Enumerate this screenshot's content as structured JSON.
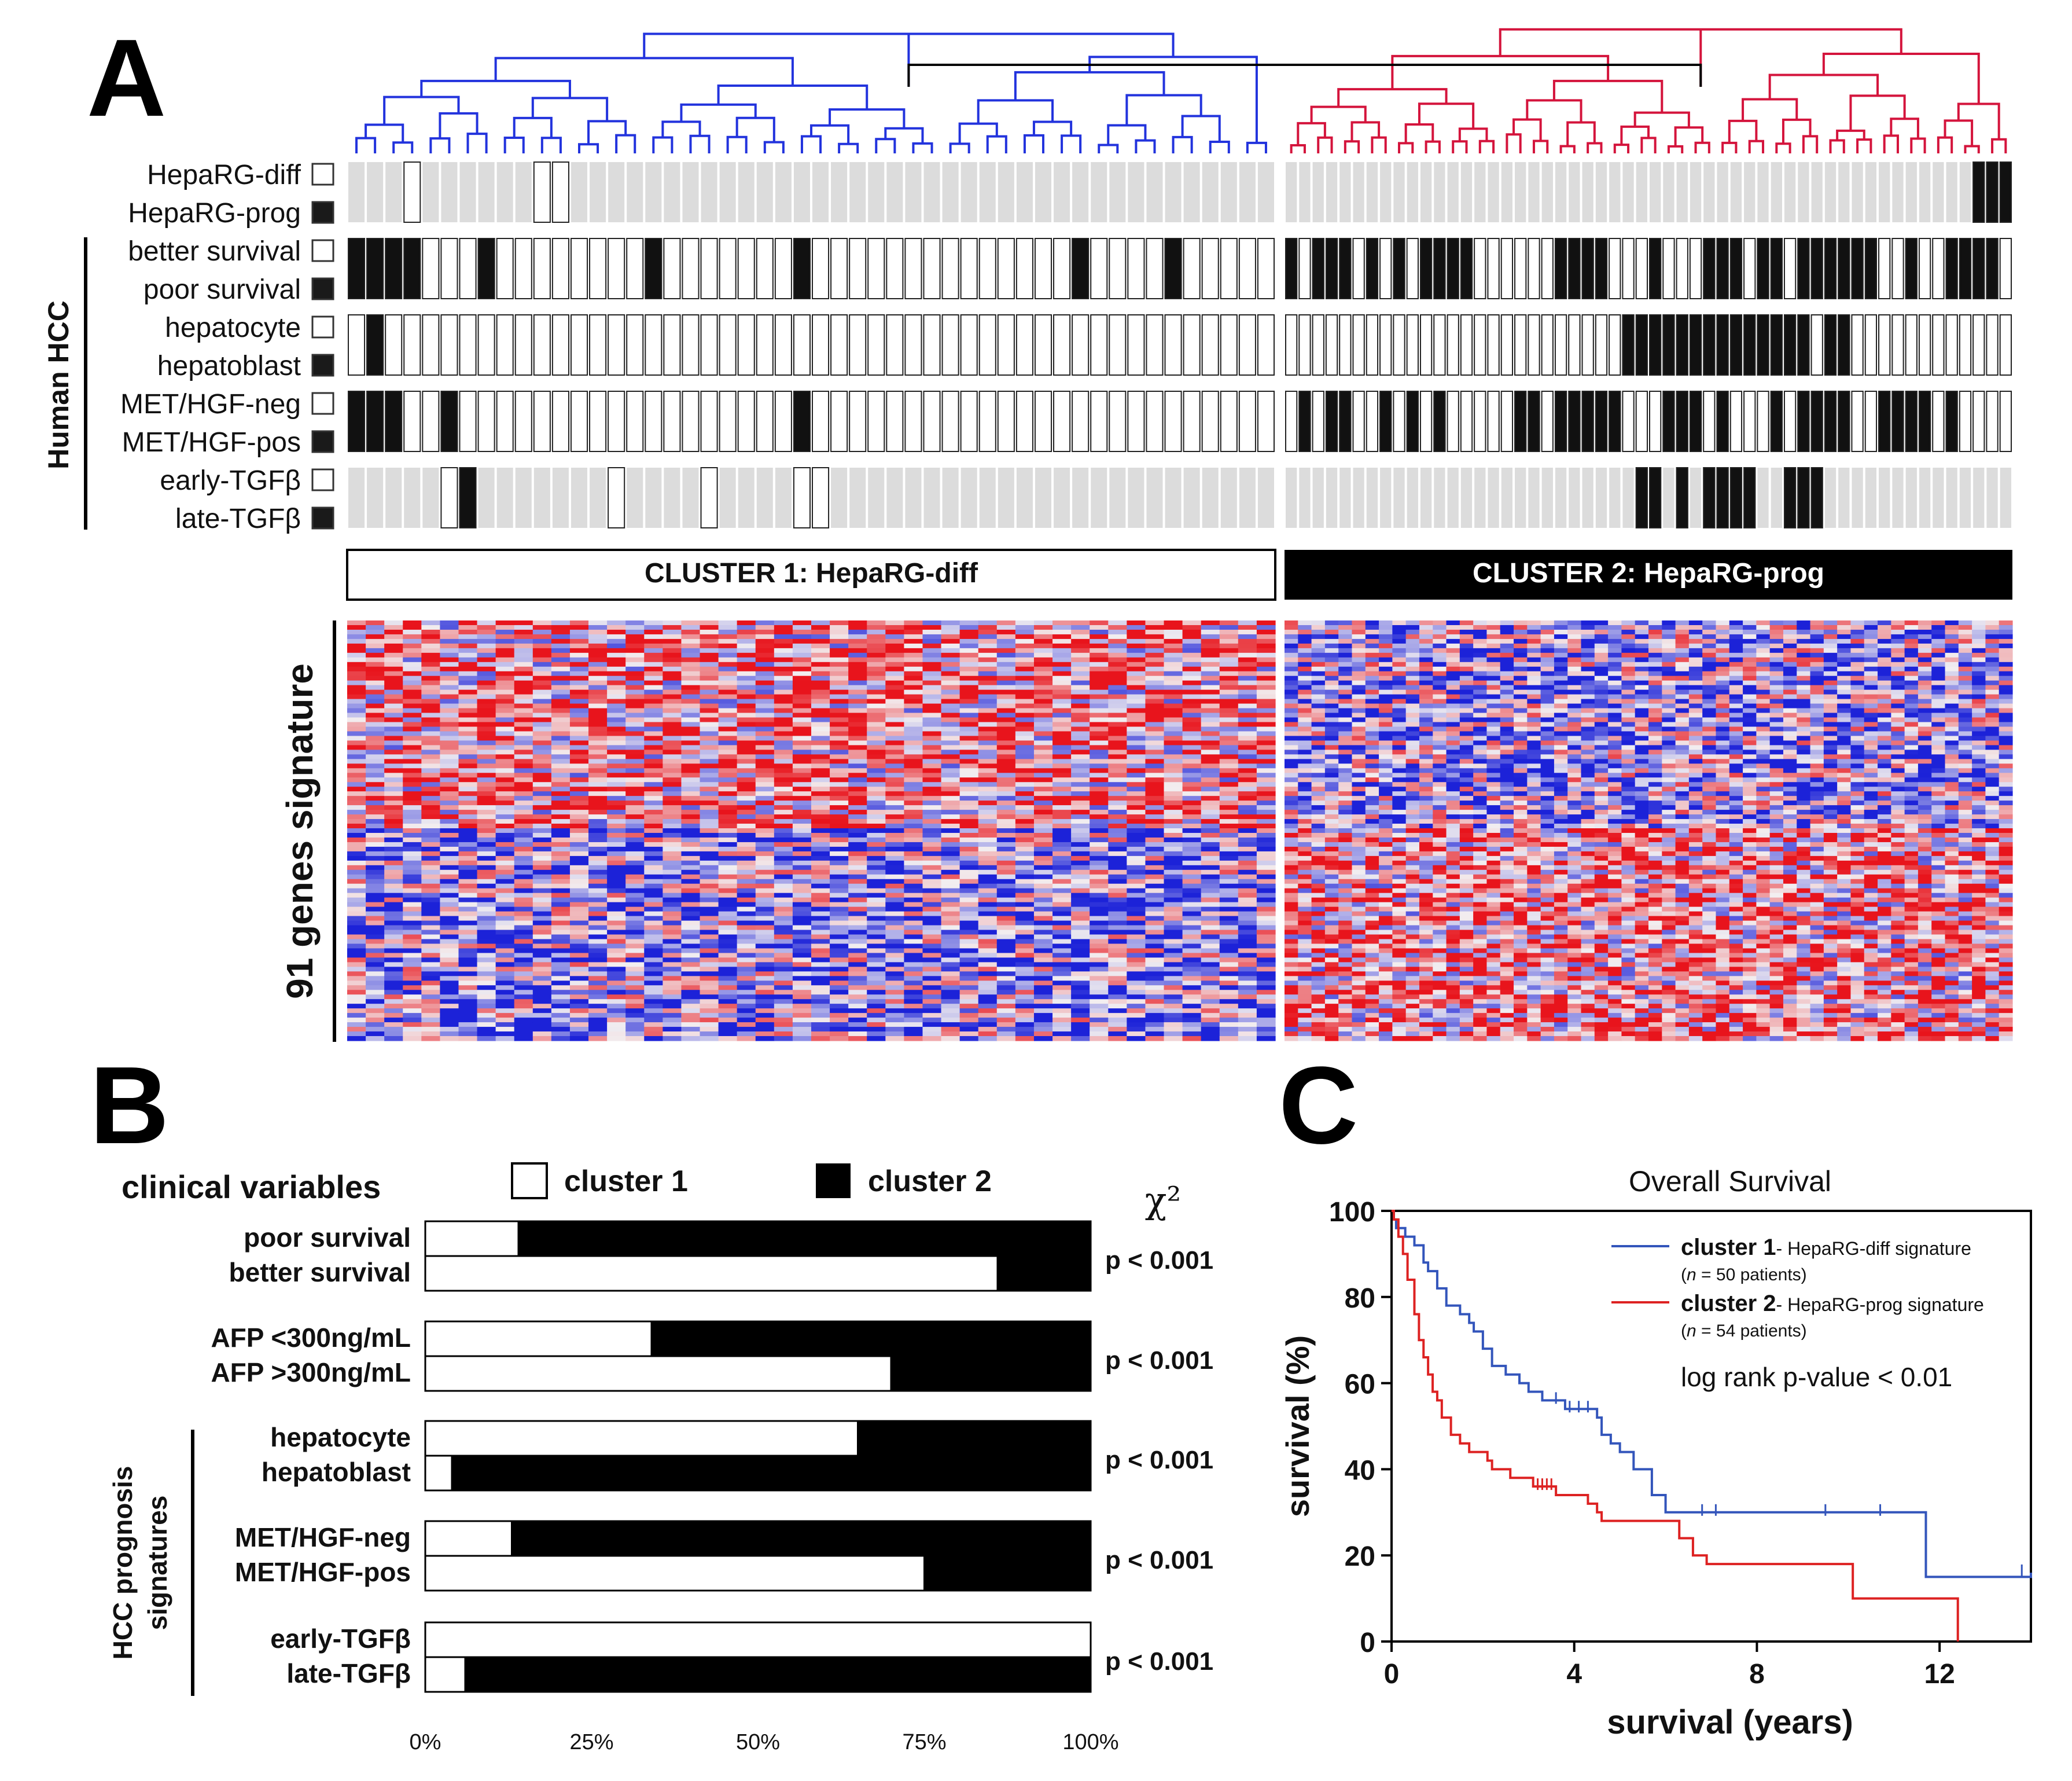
{
  "panels": {
    "a": "A",
    "b": "B",
    "c": "C"
  },
  "panel_a": {
    "annotation_rows": [
      {
        "name": "hepaRG",
        "labels": [
          "HepaRG-diff",
          "HepaRG-prog"
        ]
      },
      {
        "name": "survival",
        "labels": [
          "better survival",
          "poor survival"
        ]
      },
      {
        "name": "hepatocyte",
        "labels": [
          "hepatocyte",
          "hepatoblast"
        ]
      },
      {
        "name": "met",
        "labels": [
          "MET/HGF-neg",
          "MET/HGF-pos"
        ]
      },
      {
        "name": "tgf",
        "labels": [
          "early-TGFβ",
          "late-TGFβ"
        ]
      }
    ],
    "group_label": "Human HCC",
    "cluster1_label": "CLUSTER 1: HepaRG-diff",
    "cluster2_label": "CLUSTER 2: HepaRG-prog",
    "heatmap_label": "91 genes signature",
    "colors": {
      "cluster1_tree": "#2233dd",
      "cluster2_tree": "#d4143c",
      "heat_high": "#e8141c",
      "heat_low": "#1c22d8",
      "heat_mid": "#f2eef0"
    }
  },
  "chart_data": [
    {
      "type": "bar",
      "subtype": "stacked-percent-horizontal",
      "title": "",
      "header": "clinical variables",
      "legend": [
        {
          "name": "cluster 1",
          "color": "#ffffff"
        },
        {
          "name": "cluster 2",
          "color": "#000000"
        }
      ],
      "legend_placement": "top",
      "chi_label": "χ²",
      "side_group_label": [
        "HCC prognosis",
        "signatures"
      ],
      "x_ticks": [
        "0%",
        "25%",
        "50%",
        "75%",
        "100%"
      ],
      "xlim": [
        0,
        100
      ],
      "groups": [
        {
          "rows": [
            {
              "label": "poor survival",
              "cluster1": 14
            },
            {
              "label": "better survival",
              "cluster1": 86
            }
          ],
          "p": "p < 0.001"
        },
        {
          "rows": [
            {
              "label": "AFP <300ng/mL",
              "cluster1": 34
            },
            {
              "label": "AFP >300ng/mL",
              "cluster1": 70
            }
          ],
          "p": "p < 0.001"
        },
        {
          "rows": [
            {
              "label": "hepatocyte",
              "cluster1": 65
            },
            {
              "label": "hepatoblast",
              "cluster1": 4
            }
          ],
          "p": "p < 0.001"
        },
        {
          "rows": [
            {
              "label": "MET/HGF-neg",
              "cluster1": 13
            },
            {
              "label": "MET/HGF-pos",
              "cluster1": 75
            }
          ],
          "p": "p < 0.001"
        },
        {
          "rows": [
            {
              "label": "early-TGFβ",
              "cluster1": 100
            },
            {
              "label": "late-TGFβ",
              "cluster1": 6
            }
          ],
          "p": "p < 0.001"
        }
      ]
    },
    {
      "type": "line",
      "subtype": "kaplan-meier",
      "title": "Overall Survival",
      "xlabel": "survival (years)",
      "ylabel": "survival (%)",
      "xlim": [
        0,
        14
      ],
      "ylim": [
        0,
        100
      ],
      "x_ticks": [
        0,
        4,
        8,
        12
      ],
      "y_ticks": [
        0,
        20,
        40,
        60,
        80,
        100
      ],
      "annotation": "log rank p-value < 0.01",
      "legend_placement": "top-right",
      "series": [
        {
          "name": "cluster 1",
          "desc": "- HepaRG-diff signature",
          "n_text": "= 50 patients)",
          "color": "#3355bb",
          "steps": [
            [
              0,
              100
            ],
            [
              0.05,
              98
            ],
            [
              0.1,
              96
            ],
            [
              0.3,
              94
            ],
            [
              0.5,
              92
            ],
            [
              0.7,
              88
            ],
            [
              0.8,
              86
            ],
            [
              1.0,
              82
            ],
            [
              1.2,
              78
            ],
            [
              1.5,
              76
            ],
            [
              1.7,
              74
            ],
            [
              1.8,
              72
            ],
            [
              2.0,
              68
            ],
            [
              2.2,
              64
            ],
            [
              2.5,
              62
            ],
            [
              2.8,
              60
            ],
            [
              3.0,
              58
            ],
            [
              3.3,
              56
            ],
            [
              3.8,
              54
            ],
            [
              4.5,
              52
            ],
            [
              4.6,
              48
            ],
            [
              4.8,
              46
            ],
            [
              5.0,
              44
            ],
            [
              5.3,
              40
            ],
            [
              5.7,
              34
            ],
            [
              6.0,
              30
            ],
            [
              11.7,
              15
            ],
            [
              14,
              16
            ]
          ],
          "censored": [
            [
              3.6,
              56
            ],
            [
              3.9,
              54
            ],
            [
              4.1,
              54
            ],
            [
              4.3,
              54
            ],
            [
              6.8,
              30
            ],
            [
              7.1,
              30
            ],
            [
              9.5,
              30
            ],
            [
              10.7,
              30
            ],
            [
              13.8,
              16
            ]
          ]
        },
        {
          "name": "cluster 2",
          "desc": "- HepaRG-prog signature",
          "n_text": "= 54 patients)",
          "color": "#dd2222",
          "steps": [
            [
              0,
              100
            ],
            [
              0.05,
              98
            ],
            [
              0.15,
              94
            ],
            [
              0.25,
              90
            ],
            [
              0.35,
              84
            ],
            [
              0.5,
              76
            ],
            [
              0.6,
              70
            ],
            [
              0.7,
              66
            ],
            [
              0.8,
              62
            ],
            [
              0.9,
              58
            ],
            [
              1.0,
              56
            ],
            [
              1.1,
              52
            ],
            [
              1.3,
              48
            ],
            [
              1.5,
              46
            ],
            [
              1.7,
              44
            ],
            [
              2.1,
              42
            ],
            [
              2.2,
              40
            ],
            [
              2.6,
              38
            ],
            [
              3.1,
              36
            ],
            [
              3.6,
              34
            ],
            [
              4.3,
              32
            ],
            [
              4.5,
              30
            ],
            [
              4.6,
              28
            ],
            [
              6.3,
              24
            ],
            [
              6.6,
              20
            ],
            [
              6.9,
              18
            ],
            [
              10.1,
              10
            ],
            [
              11.1,
              10
            ],
            [
              12.4,
              0
            ]
          ],
          "censored": [
            [
              3.2,
              36
            ],
            [
              3.3,
              36
            ],
            [
              3.4,
              36
            ],
            [
              3.5,
              36
            ]
          ]
        }
      ]
    }
  ]
}
